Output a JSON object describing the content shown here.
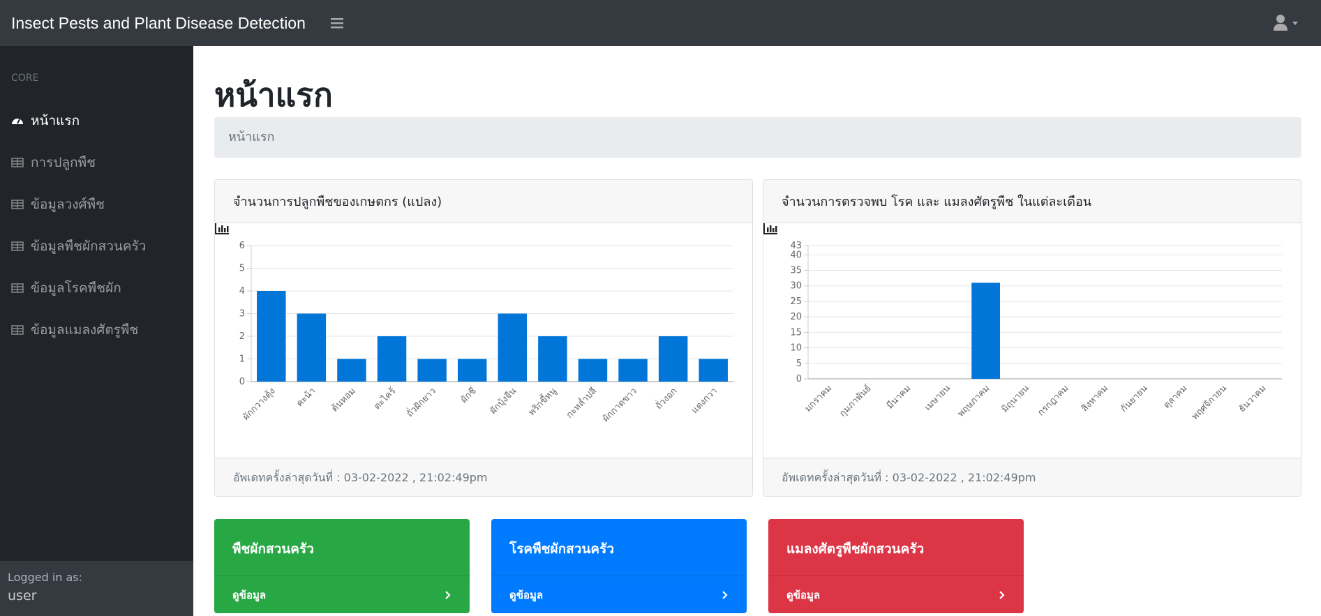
{
  "navbar": {
    "brand": "Insect Pests and Plant Disease Detection"
  },
  "sidebar": {
    "heading": "CORE",
    "items": [
      "หน้าแรก",
      "การปลูกพืช",
      "ข้อมูลวงศ์พืช",
      "ข้อมูลพืชผักสวนครัว",
      "ข้อมูลโรคพืชผัก",
      "ข้อมูลแมลงศัตรูพืช"
    ],
    "footer_label": "Logged in as:",
    "user": "user"
  },
  "page": {
    "title": "หน้าแรก",
    "breadcrumb": "หน้าแรก"
  },
  "chart_data": [
    {
      "type": "bar",
      "title": "จำนวนการปลูกพืชของเกษตกร (แปลง)",
      "categories": [
        "ผักกวางตุ้ง",
        "คะน้า",
        "ต้นหอม",
        "ตะไคร้",
        "ถั่วฝักยาว",
        "ผักชี",
        "ผักบุ้งจีน",
        "พริกขี้หนู",
        "กะหล่ำปลี",
        "ผักกาดขาว",
        "ถั่วงอก",
        "แตงกวา"
      ],
      "values": [
        4,
        3,
        1,
        2,
        1,
        1,
        3,
        2,
        1,
        1,
        2,
        1
      ],
      "color": "#0275d8",
      "ylim": [
        0,
        6
      ],
      "yticks": [
        0,
        1,
        2,
        3,
        4,
        5,
        6
      ],
      "grid": true
    },
    {
      "type": "bar",
      "title": "จำนวนการตรวจพบ โรค และ แมลงศัตรูพืช ในแต่ละเดือน",
      "categories": [
        "มกราคม",
        "กุมภาพันธ์",
        "มีนาคม",
        "เมษายน",
        "พฤษภาคม",
        "มิถุนายน",
        "กรกฎาคม",
        "สิงหาคม",
        "กันยายน",
        "ตุลาคม",
        "พฤศจิกายน",
        "ธันวาคม"
      ],
      "values": [
        0,
        0,
        0,
        0,
        31,
        0,
        0,
        0,
        0,
        0,
        0,
        0
      ],
      "color": "#0275d8",
      "ylim": [
        0,
        43
      ],
      "yticks": [
        0,
        5,
        10,
        15,
        20,
        25,
        30,
        35,
        40,
        43
      ],
      "grid": true
    }
  ],
  "chart_footers": [
    "อัพเดทครั้งล่าสุดวันที่ : 03-02-2022 , 21:02:49pm",
    "อัพเดทครั้งล่าสุดวันที่ : 03-02-2022 , 21:02:49pm"
  ],
  "cards": [
    {
      "title": "พืชผักสวนครัว",
      "link": "ดูข้อมูล",
      "color": "#28a745"
    },
    {
      "title": "โรคพืชผักสวนครัว",
      "link": "ดูข้อมูล",
      "color": "#007bff"
    },
    {
      "title": "แมลงศัตรูพืชผักสวนครัว",
      "link": "ดูข้อมูล",
      "color": "#dc3545"
    }
  ]
}
